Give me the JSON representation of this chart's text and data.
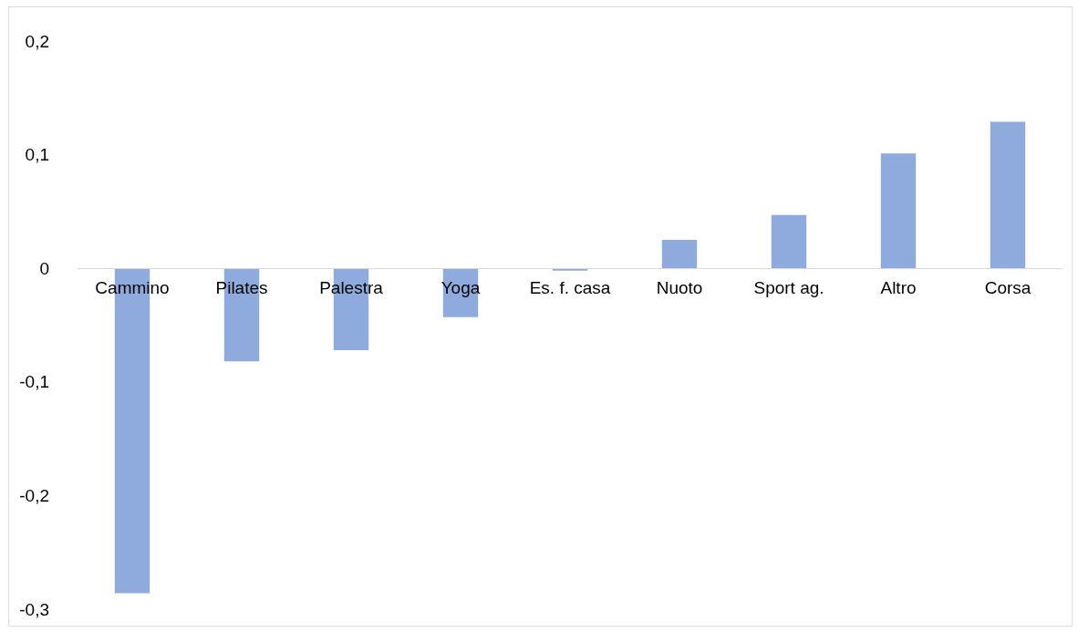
{
  "chart_data": {
    "type": "bar",
    "categories": [
      "Cammino",
      "Pilates",
      "Palestra",
      "Yoga",
      "Es. f. casa",
      "Nuoto",
      "Sport ag.",
      "Altro",
      "Corsa"
    ],
    "values": [
      -0.286,
      -0.082,
      -0.072,
      -0.043,
      -0.002,
      0.025,
      0.047,
      0.101,
      0.129
    ],
    "color": "#8faadc",
    "ylim": [
      -0.3,
      0.2
    ],
    "yticks": [
      {
        "value": -0.3,
        "label": "-0,3"
      },
      {
        "value": -0.2,
        "label": "-0,2"
      },
      {
        "value": -0.1,
        "label": "-0,1"
      },
      {
        "value": 0,
        "label": "0"
      },
      {
        "value": 0.1,
        "label": "0,1"
      },
      {
        "value": 0.2,
        "label": "0,2"
      }
    ],
    "grid": false
  }
}
